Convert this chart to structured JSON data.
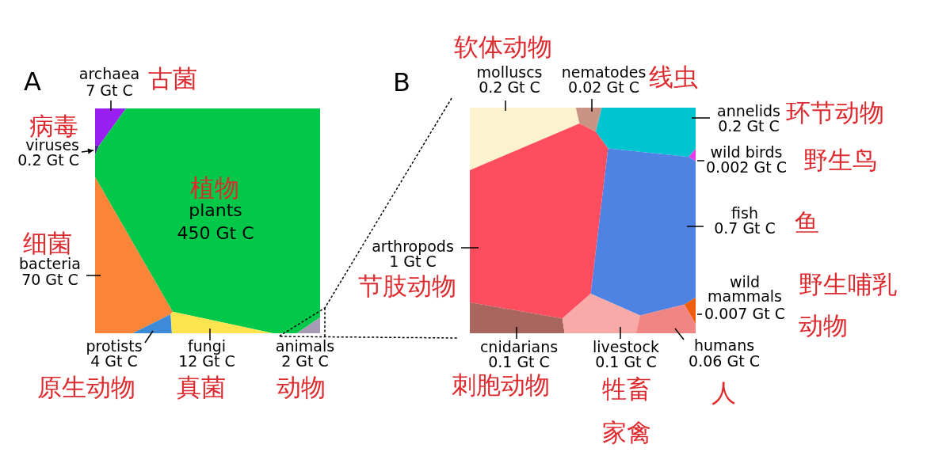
{
  "chart_data": [
    {
      "type": "other",
      "title": "A",
      "categories": [
        "archaea",
        "viruses",
        "plants",
        "bacteria",
        "protists",
        "fungi",
        "animals"
      ],
      "values": [
        7,
        0.2,
        450,
        70,
        4,
        12,
        2
      ],
      "value_labels": [
        "7 Gt C",
        "0.2 Gt C",
        "450 Gt C",
        "70 Gt C",
        "4 Gt C",
        "12 Gt C",
        "2 Gt C"
      ],
      "colors": [
        "#9a1ff2",
        "#4b2a8c",
        "#02c84a",
        "#fa8538",
        "#3d8ad8",
        "#fde34e",
        "#a69bb4"
      ],
      "annotations": [
        "古菌",
        "病毒",
        "植物",
        "细菌",
        "原生动物",
        "真菌",
        "动物"
      ]
    },
    {
      "type": "other",
      "title": "B",
      "categories": [
        "molluscs",
        "nematodes",
        "annelids",
        "wild birds",
        "fish",
        "arthropods",
        "wild mammals",
        "cnidarians",
        "livestock",
        "humans"
      ],
      "values": [
        0.2,
        0.02,
        0.2,
        0.002,
        0.7,
        1,
        0.007,
        0.1,
        0.1,
        0.06
      ],
      "value_labels": [
        "0.2 Gt C",
        "0.02 Gt C",
        "0.2 Gt C",
        "0.002 Gt C",
        "0.7 Gt C",
        "1 Gt C",
        "0.007 Gt C",
        "0.1 Gt C",
        "0.1 Gt C",
        "0.06 Gt C"
      ],
      "colors": [
        "#fdf2cf",
        "#c99486",
        "#00c5d1",
        "#e63ae8",
        "#4e83e4",
        "#fd4d5e",
        "#f05d0a",
        "#a9665e",
        "#f8aaa9",
        "#f08583"
      ],
      "annotations": [
        "软体动物",
        "线虫",
        "环节动物",
        "野生鸟",
        "鱼",
        "节肢动物",
        "野生哺乳动物",
        "刺胞动物",
        "牲畜家禽",
        "人"
      ]
    }
  ]
}
